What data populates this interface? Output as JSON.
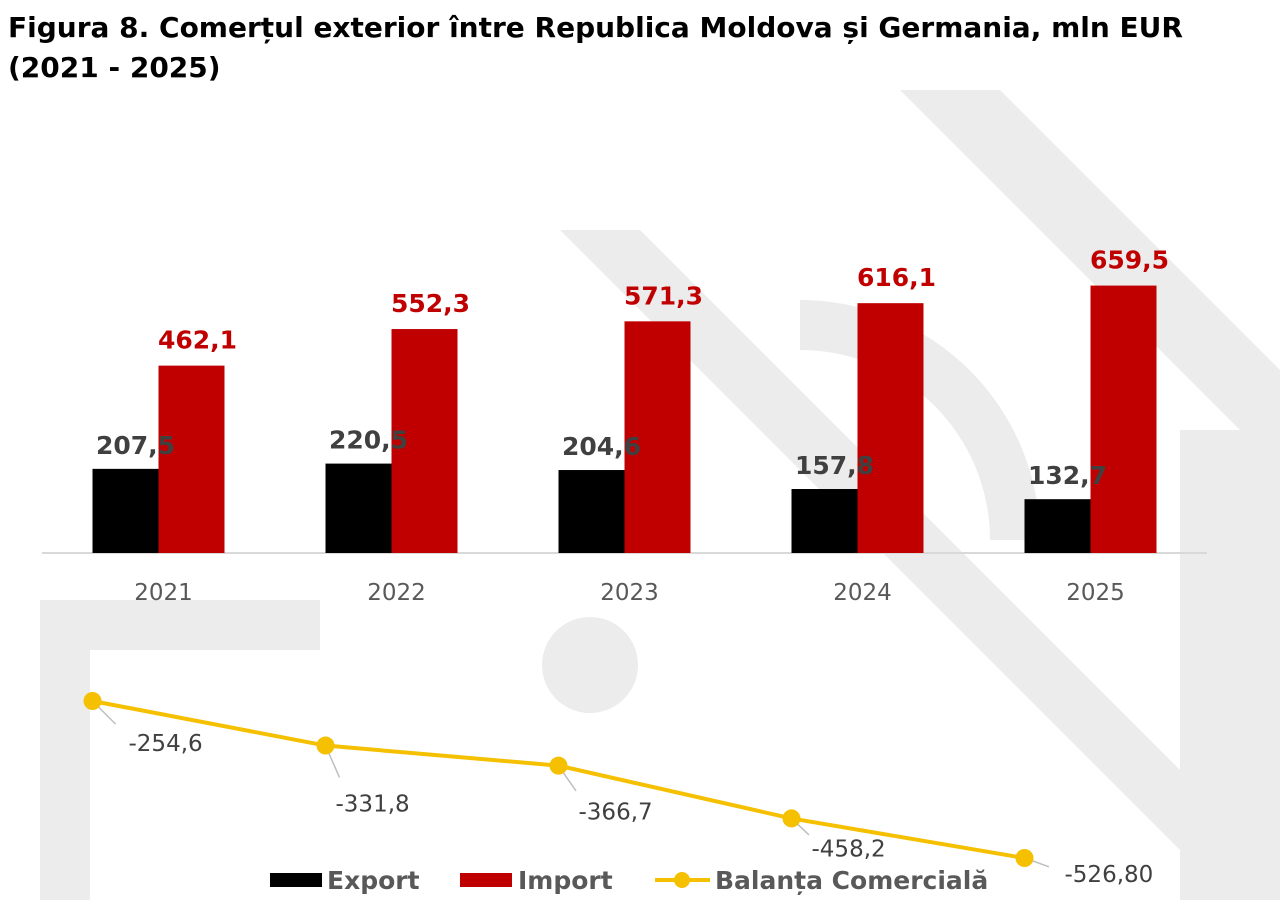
{
  "title": "Figura 8. Comerțul exterior între Republica Moldova și Germania, mln EUR (2021 - 2025)",
  "colors": {
    "export": "#000000",
    "import": "#c00000",
    "balance": "#f5c000",
    "import_label": "#c00000",
    "export_label": "#404040"
  },
  "chart_data": {
    "type": "bar",
    "title": "Figura 8. Comerțul exterior între Republica Moldova și Germania, mln EUR (2021 - 2025)",
    "categories": [
      "2021",
      "2022",
      "2023",
      "2024",
      "2025"
    ],
    "series": [
      {
        "name": "Export",
        "type": "bar",
        "values": [
          207.5,
          220.5,
          204.6,
          157.8,
          132.7
        ],
        "labels": [
          "207,5",
          "220,5",
          "204,6",
          "157,8",
          "132,7"
        ]
      },
      {
        "name": "Import",
        "type": "bar",
        "values": [
          462.1,
          552.3,
          571.3,
          616.1,
          659.5
        ],
        "labels": [
          "462,1",
          "552,3",
          "571,3",
          "616,1",
          "659,5"
        ]
      },
      {
        "name": "Balanța Comercială",
        "type": "line",
        "values": [
          -254.6,
          -331.8,
          -366.7,
          -458.2,
          -526.8
        ],
        "labels": [
          "-254,6",
          "-331,8",
          "-366,7",
          "-458,2",
          "-526,80"
        ]
      }
    ],
    "legend": {
      "position": "bottom",
      "items": [
        "Export",
        "Import",
        "Balanța Comercială"
      ]
    },
    "grid": false
  }
}
